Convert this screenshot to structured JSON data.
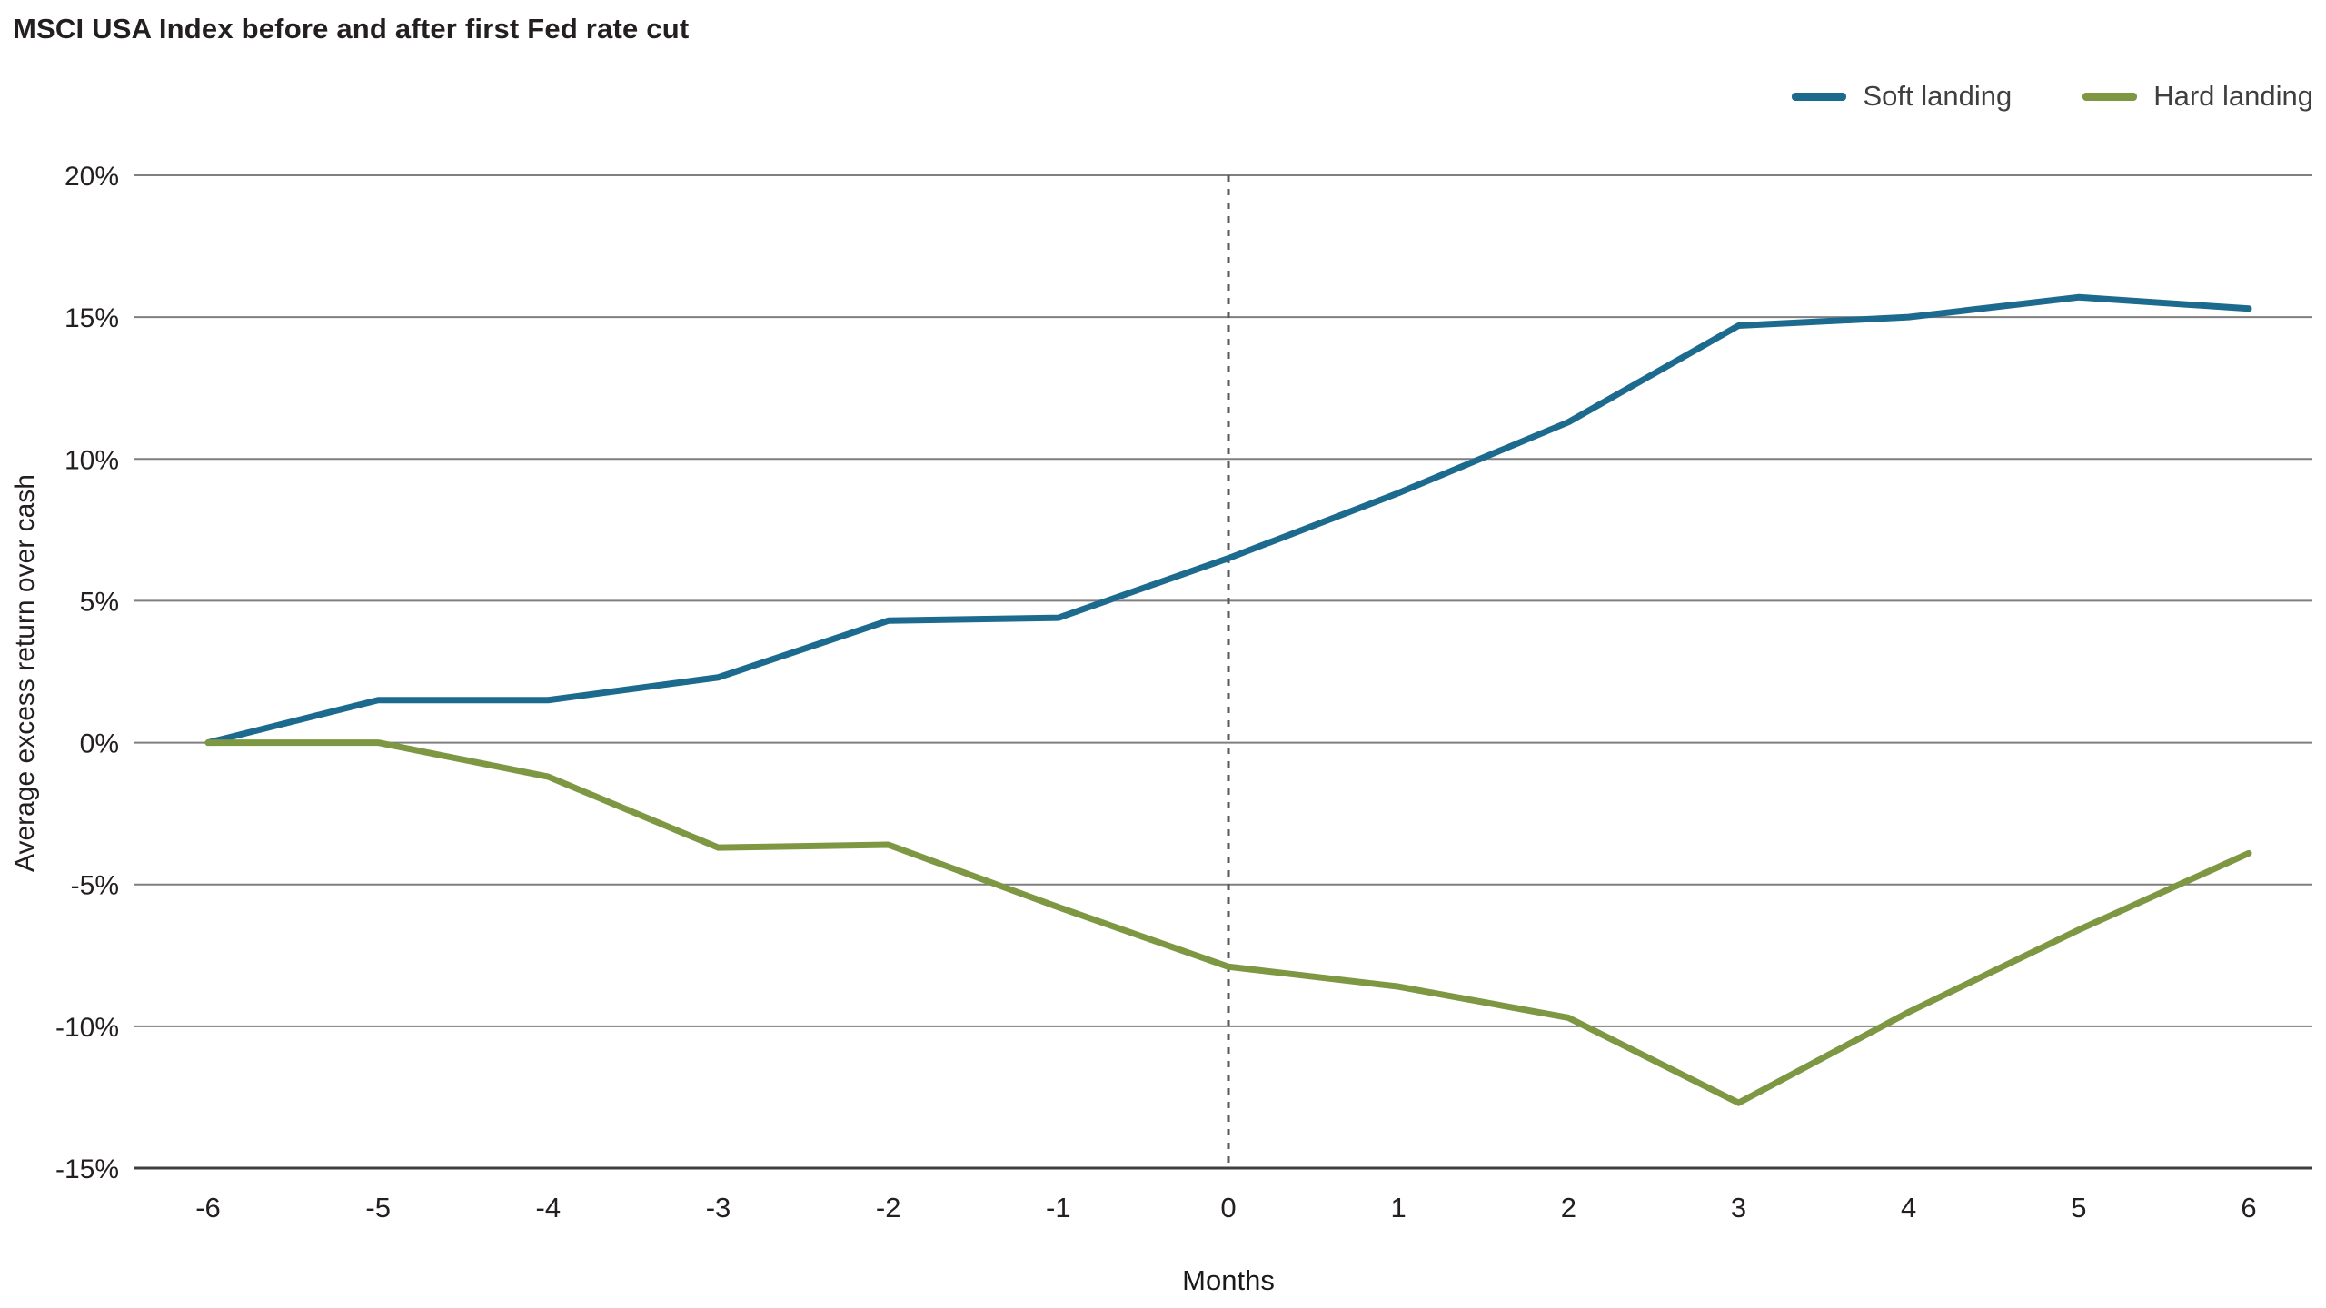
{
  "chart_data": {
    "type": "line",
    "title": "MSCI USA Index before and after first Fed rate cut",
    "xlabel": "Months",
    "ylabel": "Average excess return over cash",
    "x": [
      -6,
      -5,
      -4,
      -3,
      -2,
      -1,
      0,
      1,
      2,
      3,
      4,
      5,
      6
    ],
    "series": [
      {
        "name": "Soft landing",
        "color": "#1d6a8f",
        "values": [
          0,
          1.5,
          1.5,
          2.3,
          4.3,
          4.4,
          6.5,
          8.8,
          11.3,
          14.7,
          15.0,
          15.7,
          15.3
        ]
      },
      {
        "name": "Hard landing",
        "color": "#7d9742",
        "values": [
          0,
          0,
          -1.2,
          -3.7,
          -3.6,
          -5.8,
          -7.9,
          -8.6,
          -9.7,
          -12.7,
          -9.5,
          -6.6,
          -3.9
        ]
      }
    ],
    "ylim": [
      -15,
      20
    ],
    "ytick_step": 5,
    "ytick_format": "percent",
    "grid": true,
    "gridline_color": "#7f7f7f",
    "axis_line_color": "#3f3f41",
    "vline_x": 0,
    "vline_style": "dashed",
    "vline_color": "#58595b",
    "legend_position": "top-right"
  }
}
